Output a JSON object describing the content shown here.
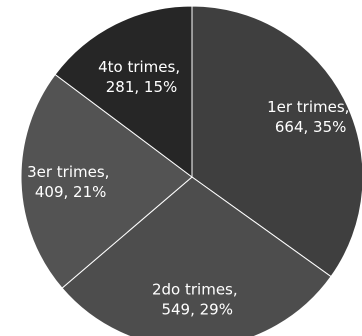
{
  "chart_data": {
    "type": "pie",
    "title": "",
    "slices": [
      {
        "label": "1er trimes",
        "value": 664,
        "percent": "35%",
        "color": "#3f3f3f"
      },
      {
        "label": "2do trimes",
        "value": 549,
        "percent": "29%",
        "color": "#4d4d4d"
      },
      {
        "label": "3er trimes",
        "value": 409,
        "percent": "21%",
        "color": "#535353"
      },
      {
        "label": "4to trimes",
        "value": 281,
        "percent": "15%",
        "color": "#262626"
      }
    ],
    "data_labels": [
      {
        "line1": "1er trimes,",
        "line2": "664, 35%"
      },
      {
        "line1": "2do trimes,",
        "line2": "549, 29%"
      },
      {
        "line1": "3er trimes,",
        "line2": "409, 21%"
      },
      {
        "line1": "4to trimes,",
        "line2": "281, 15%"
      }
    ],
    "start_angle_deg": 0,
    "direction": "clockwise",
    "legend": "none"
  }
}
